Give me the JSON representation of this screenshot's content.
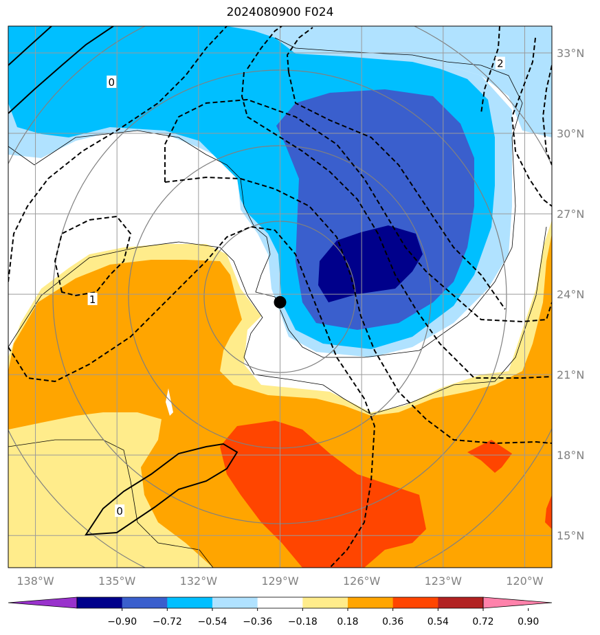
{
  "title": "2024080900 F024",
  "map": {
    "lon_range": [
      -139,
      -119
    ],
    "lat_range": [
      13.8,
      34
    ],
    "lon_ticks": [
      "138°W",
      "135°W",
      "132°W",
      "129°W",
      "126°W",
      "123°W",
      "120°W"
    ],
    "lon_tick_values": [
      -138,
      -135,
      -132,
      -129,
      -126,
      -123,
      -120
    ],
    "lat_ticks": [
      "33°N",
      "30°N",
      "27°N",
      "24°N",
      "21°N",
      "18°N",
      "15°N"
    ],
    "lat_tick_values": [
      33,
      30,
      27,
      24,
      21,
      18,
      15
    ],
    "gridlines": true,
    "storm_center": {
      "lon": -129,
      "lat": 23.7
    },
    "contour_labels": [
      {
        "text": "0",
        "lon": -135.2,
        "lat": 31.9
      },
      {
        "text": "2",
        "lon": -120.9,
        "lat": 32.6
      },
      {
        "text": "1",
        "lon": -135.9,
        "lat": 23.8
      },
      {
        "text": "0",
        "lon": -134.9,
        "lat": 15.9
      }
    ]
  },
  "colorbar": {
    "labels": [
      "−0.90",
      "−0.72",
      "−0.54",
      "−0.36",
      "−0.18",
      "0.18",
      "0.36",
      "0.54",
      "0.72",
      "0.90"
    ],
    "colors": [
      "#9932cc",
      "#00008b",
      "#3a5fcd",
      "#00bfff",
      "#b0e2ff",
      "#ffffff",
      "#ffec8b",
      "#ffa500",
      "#ff4500",
      "#b22222",
      "#ff82ab"
    ]
  },
  "fill_colors": {
    "light_blue": "#b0e2ff",
    "deep_sky_blue": "#00bfff",
    "royal_blue": "#3a5fcd",
    "navy": "#00008b",
    "light_yellow": "#ffec8b",
    "orange": "#ffa500",
    "orange_red": "#ff4500"
  }
}
